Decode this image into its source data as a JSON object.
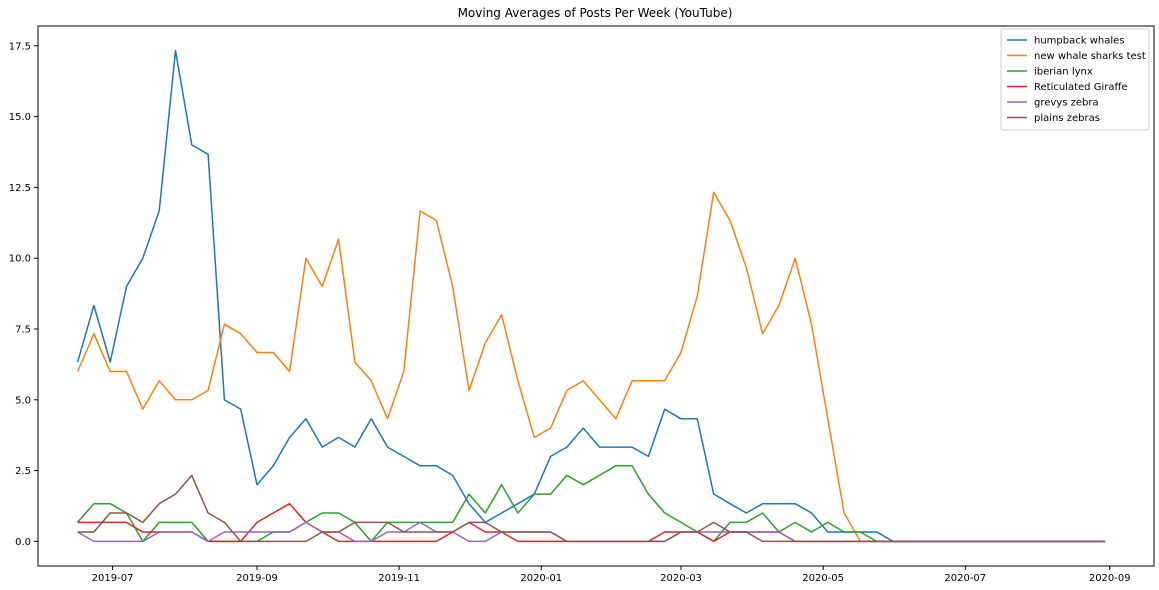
{
  "chart_data": {
    "type": "line",
    "title": "Moving Averages of Posts Per Week (YouTube)",
    "xlabel": "",
    "ylabel": "",
    "x_start": "2019-06-16",
    "x_step_days": 7,
    "x_count": 64,
    "xlim": [
      "2019-05-30",
      "2020-09-20"
    ],
    "ylim": [
      -0.87,
      18.2
    ],
    "x_ticks": [
      {
        "date": "2019-07-01",
        "label": "2019-07"
      },
      {
        "date": "2019-09-01",
        "label": "2019-09"
      },
      {
        "date": "2019-11-01",
        "label": "2019-11"
      },
      {
        "date": "2020-01-01",
        "label": "2020-01"
      },
      {
        "date": "2020-03-01",
        "label": "2020-03"
      },
      {
        "date": "2020-05-01",
        "label": "2020-05"
      },
      {
        "date": "2020-07-01",
        "label": "2020-07"
      },
      {
        "date": "2020-09-01",
        "label": "2020-09"
      }
    ],
    "y_ticks": [
      {
        "value": 0.0,
        "label": "0.0"
      },
      {
        "value": 2.5,
        "label": "2.5"
      },
      {
        "value": 5.0,
        "label": "5.0"
      },
      {
        "value": 7.5,
        "label": "7.5"
      },
      {
        "value": 10.0,
        "label": "10.0"
      },
      {
        "value": 12.5,
        "label": "12.5"
      },
      {
        "value": 15.0,
        "label": "15.0"
      },
      {
        "value": 17.5,
        "label": "17.5"
      }
    ],
    "grid": false,
    "legend_position": "top-right",
    "series": [
      {
        "name": "humpback whales",
        "color": "#1f77b4",
        "values": [
          6.33,
          8.33,
          6.33,
          9.0,
          10.0,
          11.67,
          17.33,
          14.0,
          13.67,
          5.0,
          4.67,
          2.0,
          2.67,
          3.67,
          4.33,
          3.33,
          3.67,
          3.33,
          4.33,
          3.33,
          3.0,
          2.67,
          2.67,
          2.33,
          1.33,
          0.67,
          1.0,
          1.33,
          1.67,
          3.0,
          3.33,
          4.0,
          3.33,
          3.33,
          3.33,
          3.0,
          4.67,
          4.33,
          4.33,
          1.67,
          1.33,
          1.0,
          1.33,
          1.33,
          1.33,
          1.0,
          0.33,
          0.33,
          0.33,
          0.33,
          0,
          0,
          0,
          0,
          0,
          0,
          0,
          0,
          0,
          0,
          0,
          0,
          0,
          0
        ]
      },
      {
        "name": "new whale sharks test",
        "color": "#ff7f0e",
        "values": [
          6.0,
          7.33,
          6.0,
          6.0,
          4.67,
          5.67,
          5.0,
          5.0,
          5.33,
          7.67,
          7.33,
          6.67,
          6.67,
          6.0,
          10.0,
          9.0,
          10.67,
          6.33,
          5.67,
          4.33,
          6.0,
          11.67,
          11.33,
          9.0,
          5.33,
          7.0,
          8.0,
          5.67,
          3.67,
          4.0,
          5.33,
          5.67,
          5.0,
          4.33,
          5.67,
          5.67,
          5.67,
          6.67,
          8.67,
          12.33,
          11.33,
          9.67,
          7.33,
          8.33,
          10.0,
          7.67,
          4.33,
          1.0,
          0,
          0,
          0,
          0,
          0,
          0,
          0,
          0,
          0,
          0,
          0,
          0,
          0,
          0,
          0,
          0
        ]
      },
      {
        "name": "iberian lynx",
        "color": "#2ca02c",
        "values": [
          0.67,
          1.33,
          1.33,
          1.0,
          0,
          0.67,
          0.67,
          0.67,
          0,
          0,
          0,
          0,
          0.33,
          0.33,
          0.67,
          1.0,
          1.0,
          0.67,
          0,
          0.67,
          0.67,
          0.67,
          0.67,
          0.67,
          1.67,
          1.0,
          2.0,
          1.0,
          1.67,
          1.67,
          2.33,
          2.0,
          2.33,
          2.67,
          2.67,
          1.67,
          1.0,
          0.67,
          0.33,
          0,
          0.67,
          0.67,
          1.0,
          0.33,
          0.67,
          0.33,
          0.67,
          0.33,
          0.33,
          0,
          0,
          0,
          0,
          0,
          0,
          0,
          0,
          0,
          0,
          0,
          0,
          0,
          0,
          0
        ]
      },
      {
        "name": "Reticulated Giraffe",
        "color": "#d62728",
        "values": [
          0.67,
          0.67,
          0.67,
          0.67,
          0.33,
          0.33,
          0.33,
          0.33,
          0,
          0,
          0,
          0.67,
          1.0,
          1.33,
          0.67,
          0.33,
          0,
          0,
          0,
          0,
          0,
          0,
          0,
          0.33,
          0.67,
          0.33,
          0.33,
          0,
          0,
          0,
          0,
          0,
          0,
          0,
          0,
          0,
          0.33,
          0.33,
          0.33,
          0,
          0.33,
          0.33,
          0.33,
          0.33,
          0,
          0,
          0,
          0,
          0,
          0,
          0,
          0,
          0,
          0,
          0,
          0,
          0,
          0,
          0,
          0,
          0,
          0,
          0,
          0
        ]
      },
      {
        "name": "grevys zebra",
        "color": "#9467bd",
        "values": [
          0.33,
          0,
          0,
          0,
          0,
          0.33,
          0.33,
          0.33,
          0,
          0.33,
          0.33,
          0.33,
          0.33,
          0.33,
          0.67,
          0.33,
          0.33,
          0,
          0,
          0.33,
          0.33,
          0.67,
          0.33,
          0.33,
          0,
          0,
          0.33,
          0.33,
          0.33,
          0.33,
          0,
          0,
          0,
          0,
          0,
          0,
          0,
          0.33,
          0.33,
          0.33,
          0.33,
          0.33,
          0.33,
          0.33,
          0,
          0,
          0,
          0,
          0,
          0,
          0,
          0,
          0,
          0,
          0,
          0,
          0,
          0,
          0,
          0,
          0,
          0,
          0,
          0
        ]
      },
      {
        "name": "plains zebras",
        "color": "#8c564b",
        "values": [
          0.33,
          0.33,
          1.0,
          1.0,
          0.67,
          1.33,
          1.67,
          2.33,
          1.0,
          0.67,
          0,
          0,
          0,
          0,
          0,
          0.33,
          0.33,
          0.67,
          0.67,
          0.67,
          0.33,
          0.33,
          0.33,
          0.33,
          0.67,
          0.67,
          0.33,
          0.33,
          0.33,
          0.33,
          0,
          0,
          0,
          0,
          0,
          0,
          0,
          0.33,
          0.33,
          0.67,
          0.33,
          0.33,
          0,
          0,
          0,
          0,
          0,
          0,
          0,
          0,
          0,
          0,
          0,
          0,
          0,
          0,
          0,
          0,
          0,
          0,
          0,
          0,
          0,
          0
        ]
      }
    ]
  }
}
